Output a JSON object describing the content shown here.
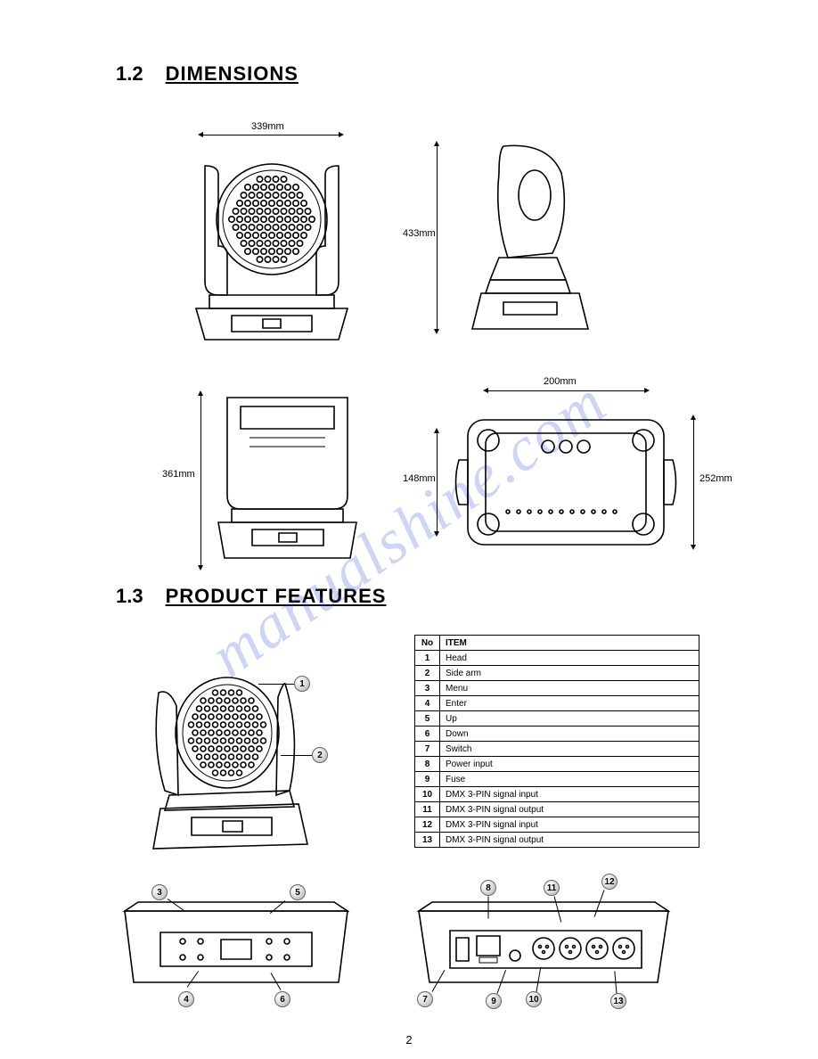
{
  "page_number": "2",
  "watermark": "manualshine.com",
  "sections": {
    "dimensions": {
      "num": "1.2",
      "title": "DIMENSIONS"
    },
    "features": {
      "num": "1.3",
      "title": "PRODUCT FEATURES"
    }
  },
  "dims": {
    "width_front": "339mm",
    "height_side": "433mm",
    "height_rear": "361mm",
    "base_width": "200mm",
    "base_inner_h": "148mm",
    "base_outer_h": "252mm"
  },
  "features_table": {
    "columns": [
      "No",
      "ITEM"
    ],
    "rows": [
      [
        "1",
        "Head"
      ],
      [
        "2",
        "Side arm"
      ],
      [
        "3",
        "Menu"
      ],
      [
        "4",
        "Enter"
      ],
      [
        "5",
        "Up"
      ],
      [
        "6",
        "Down"
      ],
      [
        "7",
        "Switch"
      ],
      [
        "8",
        "Power input"
      ],
      [
        "9",
        "Fuse"
      ],
      [
        "10",
        "DMX 3-PIN signal input"
      ],
      [
        "11",
        "DMX 3-PIN signal output"
      ],
      [
        "12",
        "DMX 3-PIN signal input"
      ],
      [
        "13",
        "DMX 3-PIN signal output"
      ]
    ]
  },
  "callouts": {
    "c1": "1",
    "c2": "2",
    "c3": "3",
    "c4": "4",
    "c5": "5",
    "c6": "6",
    "c7": "7",
    "c8": "8",
    "c9": "9",
    "c10": "10",
    "c11": "11",
    "c12": "12",
    "c13": "13"
  },
  "colors": {
    "ink": "#000000",
    "bg": "#ffffff",
    "watermark": "rgba(80,100,220,.28)",
    "bubble_edge": "#666"
  }
}
